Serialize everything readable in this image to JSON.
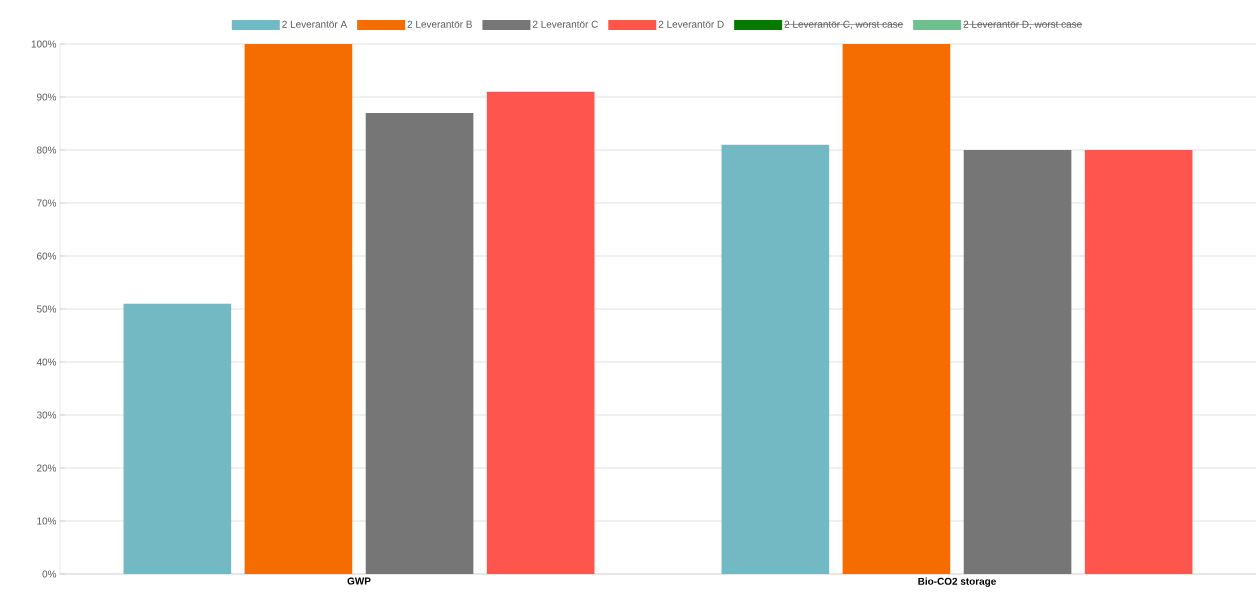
{
  "chart_data": {
    "type": "bar",
    "categories": [
      "GWP",
      "Bio-CO2 storage"
    ],
    "series": [
      {
        "name": "2 Leverantör A",
        "color": "#72b9c3",
        "values": [
          51,
          81
        ]
      },
      {
        "name": "2 Leverantör B",
        "color": "#f56c00",
        "values": [
          100,
          100
        ]
      },
      {
        "name": "2 Leverantör C",
        "color": "#767676",
        "values": [
          87,
          80
        ]
      },
      {
        "name": "2 Leverantör D",
        "color": "#fe554f",
        "values": [
          91,
          80
        ]
      },
      {
        "name": "2 Leverantör C, worst case",
        "color": "#047a05",
        "values": [
          null,
          null
        ]
      },
      {
        "name": "2 Leverantör D, worst case",
        "color": "#72be8e",
        "values": [
          null,
          null
        ]
      }
    ],
    "ylim": [
      0,
      100
    ],
    "yticks": [
      {
        "value": 0,
        "label": "0%"
      },
      {
        "value": 10,
        "label": "10%"
      },
      {
        "value": 20,
        "label": "20%"
      },
      {
        "value": 30,
        "label": "30%"
      },
      {
        "value": 40,
        "label": "40%"
      },
      {
        "value": 50,
        "label": "50%"
      },
      {
        "value": 60,
        "label": "60%"
      },
      {
        "value": 70,
        "label": "70%"
      },
      {
        "value": 80,
        "label": "80%"
      },
      {
        "value": 90,
        "label": "90%"
      },
      {
        "value": 100,
        "label": "100%"
      }
    ],
    "grid": "y",
    "legend": "top"
  }
}
